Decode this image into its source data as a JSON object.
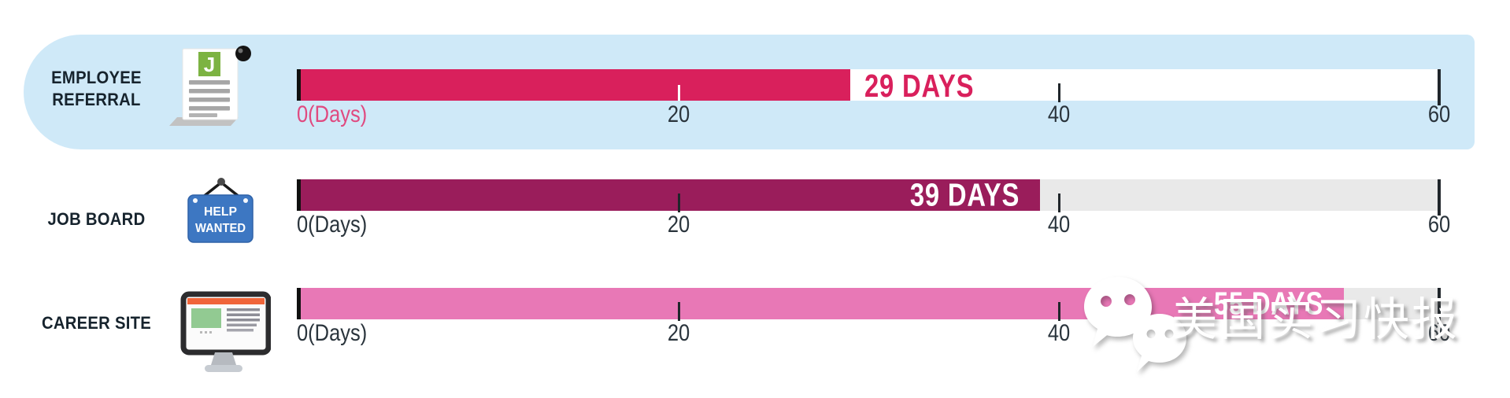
{
  "chart_data": {
    "type": "bar",
    "orientation": "horizontal",
    "categories": [
      "EMPLOYEE REFERRAL",
      "JOB BOARD",
      "CAREER SITE"
    ],
    "values": [
      29,
      39,
      55
    ],
    "value_labels": [
      "29 DAYS",
      "39 DAYS",
      "55 DAYS"
    ],
    "unit": "days",
    "xlim": [
      0,
      60
    ],
    "x_ticks": [
      0,
      20,
      40,
      60
    ],
    "x_tick_labels": [
      "0(Days)",
      "20",
      "40",
      "60"
    ],
    "series_colors": [
      "#d9205c",
      "#9a1d5b",
      "#e878b6"
    ],
    "highlighted_category": "EMPLOYEE REFERRAL",
    "grid": false,
    "legend": false
  },
  "rows": [
    {
      "label": "EMPLOYEE REFERRAL",
      "label_lines": [
        "EMPLOYEE",
        "REFERRAL"
      ],
      "icon": "referral-document-icon",
      "icon_badge": "J",
      "value": 29,
      "value_label": "29 DAYS",
      "value_label_placement": "outside",
      "value_label_color": "#d9205c",
      "origin_label": "0(Days)",
      "ticks": [
        "20",
        "40",
        "60"
      ],
      "bar_color": "#d9205c",
      "track_color": "#ffffff",
      "highlighted": true
    },
    {
      "label": "JOB BOARD",
      "label_lines": [
        "JOB BOARD"
      ],
      "icon": "help-wanted-sign-icon",
      "icon_text_lines": [
        "HELP",
        "WANTED"
      ],
      "value": 39,
      "value_label": "39 DAYS",
      "value_label_placement": "inside",
      "value_label_color": "#ffffff",
      "origin_label": "0(Days)",
      "ticks": [
        "20",
        "40",
        "60"
      ],
      "bar_color": "#9a1d5b",
      "track_color": "#e9e9e9",
      "highlighted": false
    },
    {
      "label": "CAREER SITE",
      "label_lines": [
        "CAREER SITE"
      ],
      "icon": "career-site-monitor-icon",
      "value": 55,
      "value_label": "55 DAYS",
      "value_label_placement": "inside",
      "value_label_color": "#ffffff",
      "origin_label": "0(Days)",
      "ticks": [
        "20",
        "40",
        "60"
      ],
      "bar_color": "#e878b6",
      "track_color": "#e9e9e9",
      "highlighted": false
    }
  ],
  "colors": {
    "highlight_bg": "#cfe9f8",
    "track_gray": "#e9e9e9",
    "axis_text": "#2a343c",
    "label_text": "#16232d",
    "bar_start_line": "#101010"
  },
  "watermark": {
    "logo": "wechat-icon",
    "text": "美国实习快报"
  }
}
